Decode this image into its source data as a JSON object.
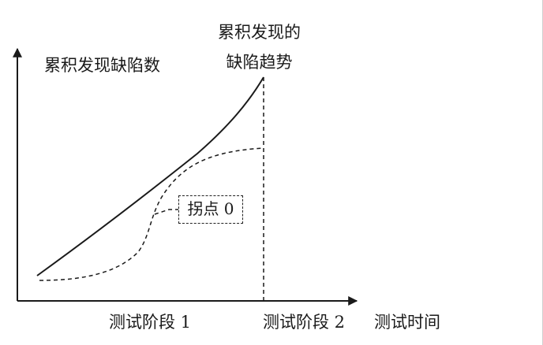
{
  "diagram": {
    "y_axis_label": "累积发现缺陷数",
    "x_axis_label": "测试时间",
    "trend_label_lines": [
      "累积发现的",
      "缺陷趋势"
    ],
    "stage_labels": [
      "测试阶段 1",
      "测试阶段 2"
    ],
    "inflection_label": "拐点 0",
    "ink_color": "#1a1a1a"
  }
}
